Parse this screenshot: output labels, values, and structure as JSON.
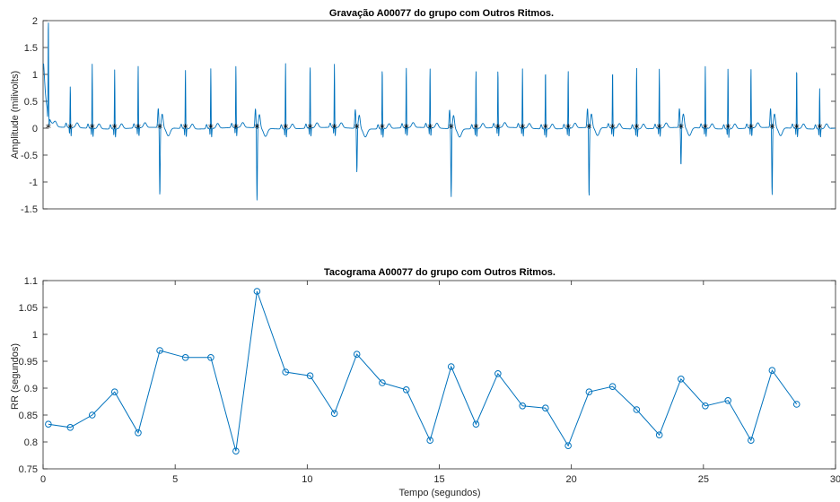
{
  "chart_data": [
    {
      "type": "line",
      "title": "Gravação A00077 do grupo com Outros Ritmos.",
      "xlabel": "",
      "ylabel": "Amplitude (milivolts)",
      "xlim": [
        0,
        30
      ],
      "ylim": [
        -1.5,
        2
      ],
      "yticks": [
        -1.5,
        -1,
        -0.5,
        0,
        0.5,
        1,
        1.5,
        2
      ],
      "ytick_labels": [
        "-1.5",
        "-1",
        "-0.5",
        "0",
        "0.5",
        "1",
        "1.5",
        "2"
      ],
      "grid": false,
      "series": [
        {
          "color": "#0072bd",
          "beats": [
            {
              "t": 0.2,
              "amp": 1.82,
              "kind": "normal"
            },
            {
              "t": 1.03,
              "amp": 0.78,
              "kind": "normal"
            },
            {
              "t": 1.86,
              "amp": 1.2,
              "kind": "normal"
            },
            {
              "t": 2.71,
              "amp": 1.1,
              "kind": "normal"
            },
            {
              "t": 3.6,
              "amp": 1.15,
              "kind": "normal"
            },
            {
              "t": 4.42,
              "amp": -1.28,
              "kind": "pvc"
            },
            {
              "t": 5.39,
              "amp": 1.1,
              "kind": "normal"
            },
            {
              "t": 6.35,
              "amp": 1.12,
              "kind": "normal"
            },
            {
              "t": 7.3,
              "amp": 1.15,
              "kind": "normal"
            },
            {
              "t": 8.1,
              "amp": -1.37,
              "kind": "pvc"
            },
            {
              "t": 9.18,
              "amp": 1.22,
              "kind": "normal"
            },
            {
              "t": 10.11,
              "amp": 1.2,
              "kind": "normal"
            },
            {
              "t": 11.03,
              "amp": 1.18,
              "kind": "normal"
            },
            {
              "t": 11.88,
              "amp": -0.82,
              "kind": "pvc"
            },
            {
              "t": 12.84,
              "amp": 1.15,
              "kind": "normal"
            },
            {
              "t": 13.75,
              "amp": 1.15,
              "kind": "normal"
            },
            {
              "t": 14.65,
              "amp": 1.12,
              "kind": "normal"
            },
            {
              "t": 15.45,
              "amp": -1.28,
              "kind": "pvc"
            },
            {
              "t": 16.39,
              "amp": 1.1,
              "kind": "normal"
            },
            {
              "t": 17.22,
              "amp": 1.1,
              "kind": "normal"
            },
            {
              "t": 18.15,
              "amp": 1.1,
              "kind": "normal"
            },
            {
              "t": 19.02,
              "amp": 1.12,
              "kind": "normal"
            },
            {
              "t": 19.88,
              "amp": 1.08,
              "kind": "normal"
            },
            {
              "t": 20.67,
              "amp": -1.3,
              "kind": "pvc"
            },
            {
              "t": 21.56,
              "amp": 1.1,
              "kind": "normal"
            },
            {
              "t": 22.47,
              "amp": 1.15,
              "kind": "normal"
            },
            {
              "t": 23.33,
              "amp": 1.1,
              "kind": "normal"
            },
            {
              "t": 24.15,
              "amp": -0.72,
              "kind": "pvc"
            },
            {
              "t": 25.07,
              "amp": 1.15,
              "kind": "normal"
            },
            {
              "t": 25.93,
              "amp": 1.15,
              "kind": "normal"
            },
            {
              "t": 26.8,
              "amp": 1.12,
              "kind": "normal"
            },
            {
              "t": 27.6,
              "amp": -1.27,
              "kind": "pvc"
            },
            {
              "t": 28.53,
              "amp": 1.15,
              "kind": "normal"
            },
            {
              "t": 29.4,
              "amp": 0.75,
              "kind": "normal"
            }
          ],
          "r_peak_markers": [
            0.2,
            1.03,
            1.86,
            2.71,
            3.6,
            4.42,
            5.39,
            6.35,
            7.3,
            8.1,
            9.18,
            10.11,
            11.03,
            11.88,
            12.84,
            13.75,
            14.65,
            15.45,
            16.39,
            17.22,
            18.15,
            19.02,
            19.88,
            20.67,
            21.56,
            22.47,
            23.33,
            24.15,
            25.07,
            25.93,
            26.8,
            27.6,
            28.53,
            29.4
          ]
        }
      ]
    },
    {
      "type": "line",
      "title": "Tacograma A00077 do grupo com Outros Ritmos.",
      "xlabel": "Tempo (segundos)",
      "ylabel": "RR (segundos)",
      "xlim": [
        0,
        30
      ],
      "ylim": [
        0.75,
        1.1
      ],
      "xticks": [
        0,
        5,
        10,
        15,
        20,
        25,
        30
      ],
      "xtick_labels": [
        "0",
        "5",
        "10",
        "15",
        "20",
        "25",
        "30"
      ],
      "yticks": [
        0.75,
        0.8,
        0.85,
        0.9,
        0.95,
        1,
        1.05,
        1.1
      ],
      "ytick_labels": [
        "0.75",
        "0.8",
        "0.85",
        "0.9",
        "0.95",
        "1",
        "1.05",
        "1.1"
      ],
      "grid": false,
      "series": [
        {
          "color": "#0072bd",
          "marker": "circle",
          "x": [
            0.2,
            1.03,
            1.86,
            2.71,
            3.6,
            4.42,
            5.39,
            6.35,
            7.3,
            8.1,
            9.18,
            10.11,
            11.03,
            11.88,
            12.84,
            13.75,
            14.65,
            15.45,
            16.39,
            17.22,
            18.15,
            19.02,
            19.88,
            20.67,
            21.56,
            22.47,
            23.33,
            24.15,
            25.07,
            25.93,
            26.8,
            27.6,
            28.53
          ],
          "y": [
            0.833,
            0.827,
            0.85,
            0.893,
            0.817,
            0.97,
            0.957,
            0.957,
            0.783,
            1.08,
            0.93,
            0.923,
            0.853,
            0.963,
            0.91,
            0.897,
            0.803,
            0.94,
            0.833,
            0.927,
            0.867,
            0.863,
            0.793,
            0.893,
            0.903,
            0.86,
            0.813,
            0.917,
            0.867,
            0.877,
            0.803,
            0.933,
            0.87
          ]
        }
      ]
    }
  ]
}
